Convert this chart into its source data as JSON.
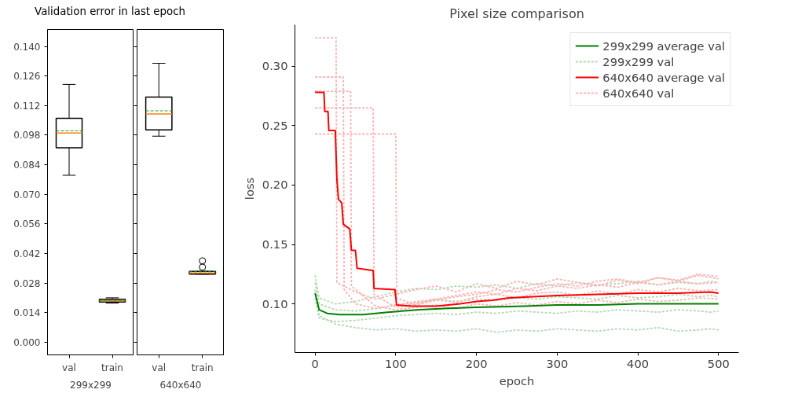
{
  "chart_data": [
    {
      "type": "box",
      "title": "Validation error in last epoch",
      "categories": [
        "val",
        "train"
      ],
      "xlabel": "299x299",
      "boxes": [
        {
          "low": 0.079,
          "q1": 0.092,
          "median": 0.099,
          "q3": 0.106,
          "high": 0.122,
          "mean": 0.1
        },
        {
          "low": 0.0185,
          "q1": 0.019,
          "median": 0.0197,
          "q3": 0.0203,
          "high": 0.021,
          "mean": 0.0198
        }
      ],
      "ylim": [
        -0.006,
        0.148
      ],
      "yticks": [
        {
          "value": 0,
          "label": "0.000"
        },
        {
          "value": 0.014,
          "label": "0.014"
        },
        {
          "value": 0.028,
          "label": "0.028"
        },
        {
          "value": 0.042,
          "label": "0.042"
        },
        {
          "value": 0.056,
          "label": "0.056"
        },
        {
          "value": 0.07,
          "label": "0.070"
        },
        {
          "value": 0.084,
          "label": "0.084"
        },
        {
          "value": 0.098,
          "label": "0.098"
        },
        {
          "value": 0.112,
          "label": "0.112"
        },
        {
          "value": 0.126,
          "label": "0.126"
        },
        {
          "value": 0.14,
          "label": "0.140"
        }
      ],
      "grid": false
    },
    {
      "type": "box",
      "categories": [
        "val",
        "train"
      ],
      "xlabel": "640x640",
      "boxes": [
        {
          "low": 0.0975,
          "q1": 0.1005,
          "median": 0.108,
          "q3": 0.116,
          "high": 0.132,
          "mean": 0.1095
        },
        {
          "low": 0.0322,
          "q1": 0.0322,
          "median": 0.0327,
          "q3": 0.0335,
          "high": 0.0335,
          "mean": 0.0333,
          "outliers": [
            0.0355,
            0.0385
          ]
        }
      ],
      "ylim": [
        -0.006,
        0.148
      ],
      "yticks": [
        0,
        0.014,
        0.028,
        0.042,
        0.056,
        0.07,
        0.084,
        0.098,
        0.112,
        0.126,
        0.14
      ],
      "tick_labels": "x",
      "grid": false
    },
    {
      "type": "line",
      "title": "Pixel size comparison",
      "xlabel": "epoch",
      "ylabel": "loss",
      "xlim": [
        -25,
        525
      ],
      "xticks": [
        0,
        100,
        200,
        300,
        400,
        500
      ],
      "ylim": [
        0.059,
        0.335
      ],
      "yticks": [
        {
          "value": 0.1,
          "label": "0.10"
        },
        {
          "value": 0.15,
          "label": "0.15"
        },
        {
          "value": 0.2,
          "label": "0.20"
        },
        {
          "value": 0.25,
          "label": "0.25"
        },
        {
          "value": 0.3,
          "label": "0.30"
        }
      ],
      "grid": false,
      "legend": "top right",
      "series": [
        {
          "name": "299x299 average val",
          "color": "#008000",
          "line_style": "solid",
          "x": [
            0,
            5,
            15,
            30,
            60,
            90,
            130,
            160,
            200,
            260,
            300,
            350,
            400,
            450,
            500
          ],
          "values": [
            0.109,
            0.095,
            0.092,
            0.091,
            0.091,
            0.093,
            0.095,
            0.096,
            0.097,
            0.098,
            0.099,
            0.099,
            0.1,
            0.1,
            0.1
          ]
        },
        {
          "name": "299x299 val",
          "color": "#b3d9b3",
          "line_style": "dashed",
          "x": [
            0,
            5,
            25,
            50,
            75,
            100,
            125,
            150,
            175,
            200,
            225,
            250,
            275,
            300,
            325,
            350,
            375,
            400,
            425,
            450,
            475,
            490,
            500
          ],
          "values": [
            0.112,
            0.09,
            0.083,
            0.08,
            0.078,
            0.079,
            0.077,
            0.078,
            0.077,
            0.079,
            0.076,
            0.078,
            0.077,
            0.079,
            0.078,
            0.077,
            0.079,
            0.078,
            0.08,
            0.077,
            0.078,
            0.079,
            0.078
          ]
        },
        {
          "color": "#b3d9b3",
          "line_style": "dashed",
          "x": [
            0,
            5,
            25,
            50,
            75,
            100,
            125,
            150,
            175,
            200,
            225,
            250,
            275,
            300,
            325,
            350,
            375,
            400,
            425,
            450,
            475,
            490,
            500
          ],
          "values": [
            0.118,
            0.1,
            0.095,
            0.094,
            0.096,
            0.099,
            0.101,
            0.103,
            0.102,
            0.104,
            0.103,
            0.105,
            0.104,
            0.106,
            0.105,
            0.104,
            0.107,
            0.105,
            0.106,
            0.108,
            0.106,
            0.107,
            0.106
          ]
        },
        {
          "color": "#b3d9b3",
          "line_style": "dashed",
          "x": [
            0,
            5,
            25,
            50,
            75,
            100,
            125,
            150,
            175,
            200,
            225,
            250,
            275,
            300,
            325,
            350,
            375,
            400,
            425,
            450,
            475,
            490,
            500
          ],
          "values": [
            0.124,
            0.105,
            0.1,
            0.102,
            0.106,
            0.11,
            0.113,
            0.112,
            0.115,
            0.114,
            0.116,
            0.113,
            0.117,
            0.115,
            0.118,
            0.116,
            0.117,
            0.119,
            0.116,
            0.118,
            0.117,
            0.119,
            0.118
          ]
        },
        {
          "color": "#b3d9b3",
          "line_style": "dashed",
          "x": [
            0,
            5,
            25,
            50,
            75,
            100,
            125,
            150,
            175,
            200,
            225,
            250,
            275,
            300,
            325,
            350,
            375,
            400,
            425,
            450,
            475,
            490,
            500
          ],
          "values": [
            0.105,
            0.088,
            0.085,
            0.086,
            0.088,
            0.09,
            0.091,
            0.092,
            0.091,
            0.093,
            0.092,
            0.094,
            0.093,
            0.092,
            0.094,
            0.093,
            0.095,
            0.094,
            0.093,
            0.095,
            0.094,
            0.093,
            0.094
          ]
        },
        {
          "name": "640x640 average val",
          "color": "#ff0000",
          "line_style": "solid",
          "x": [
            0,
            11,
            12,
            16,
            17,
            25,
            27,
            29,
            33,
            35,
            43,
            45,
            50,
            52,
            72,
            73,
            99,
            101,
            120,
            150,
            180,
            200,
            220,
            240,
            270,
            300,
            350,
            400,
            450,
            490,
            500
          ],
          "values": [
            0.278,
            0.278,
            0.262,
            0.262,
            0.246,
            0.246,
            0.205,
            0.188,
            0.185,
            0.167,
            0.163,
            0.145,
            0.145,
            0.13,
            0.128,
            0.113,
            0.112,
            0.099,
            0.098,
            0.098,
            0.1,
            0.102,
            0.103,
            0.105,
            0.106,
            0.107,
            0.108,
            0.109,
            0.109,
            0.11,
            0.109
          ]
        },
        {
          "name": "640x640 val",
          "color": "#ffb3b3",
          "line_style": "dashed",
          "x": [
            0,
            26,
            27,
            50,
            75,
            100,
            125,
            150,
            175,
            200,
            225,
            250,
            275,
            300,
            325,
            350,
            375,
            400,
            425,
            450,
            475,
            500
          ],
          "values": [
            0.324,
            0.324,
            0.118,
            0.11,
            0.104,
            0.108,
            0.112,
            0.115,
            0.11,
            0.117,
            0.113,
            0.119,
            0.116,
            0.121,
            0.118,
            0.115,
            0.12,
            0.117,
            0.122,
            0.119,
            0.124,
            0.121
          ]
        },
        {
          "color": "#ffb3b3",
          "line_style": "dashed",
          "x": [
            0,
            35,
            36,
            50,
            75,
            100,
            125,
            150,
            175,
            200,
            225,
            250,
            275,
            300,
            325,
            350,
            375,
            400,
            425,
            450,
            475,
            500
          ],
          "values": [
            0.291,
            0.291,
            0.112,
            0.1,
            0.096,
            0.099,
            0.102,
            0.104,
            0.101,
            0.106,
            0.108,
            0.105,
            0.109,
            0.11,
            0.107,
            0.111,
            0.108,
            0.112,
            0.11,
            0.113,
            0.111,
            0.112
          ]
        },
        {
          "color": "#ffb3b3",
          "line_style": "dashed",
          "x": [
            0,
            44,
            45,
            75,
            100,
            125,
            150,
            175,
            200,
            225,
            250,
            275,
            300,
            325,
            350,
            375,
            400,
            425,
            450,
            475,
            500
          ],
          "values": [
            0.279,
            0.279,
            0.115,
            0.098,
            0.095,
            0.097,
            0.099,
            0.096,
            0.1,
            0.098,
            0.101,
            0.099,
            0.102,
            0.1,
            0.103,
            0.101,
            0.104,
            0.102,
            0.103,
            0.105,
            0.104
          ]
        },
        {
          "color": "#ffb3b3",
          "line_style": "dashed",
          "x": [
            0,
            72,
            73,
            100,
            125,
            150,
            175,
            200,
            225,
            250,
            275,
            300,
            325,
            350,
            375,
            400,
            425,
            450,
            475,
            500
          ],
          "values": [
            0.265,
            0.265,
            0.108,
            0.097,
            0.1,
            0.104,
            0.107,
            0.11,
            0.108,
            0.113,
            0.111,
            0.115,
            0.113,
            0.116,
            0.114,
            0.118,
            0.116,
            0.119,
            0.117,
            0.118
          ]
        },
        {
          "color": "#ffb3b3",
          "line_style": "dashed",
          "x": [
            0,
            100,
            101,
            125,
            150,
            175,
            200,
            225,
            250,
            275,
            300,
            325,
            350,
            375,
            400,
            425,
            450,
            475,
            500
          ],
          "values": [
            0.243,
            0.243,
            0.105,
            0.099,
            0.103,
            0.106,
            0.108,
            0.112,
            0.11,
            0.114,
            0.117,
            0.115,
            0.119,
            0.121,
            0.118,
            0.122,
            0.12,
            0.125,
            0.123
          ]
        }
      ]
    }
  ]
}
